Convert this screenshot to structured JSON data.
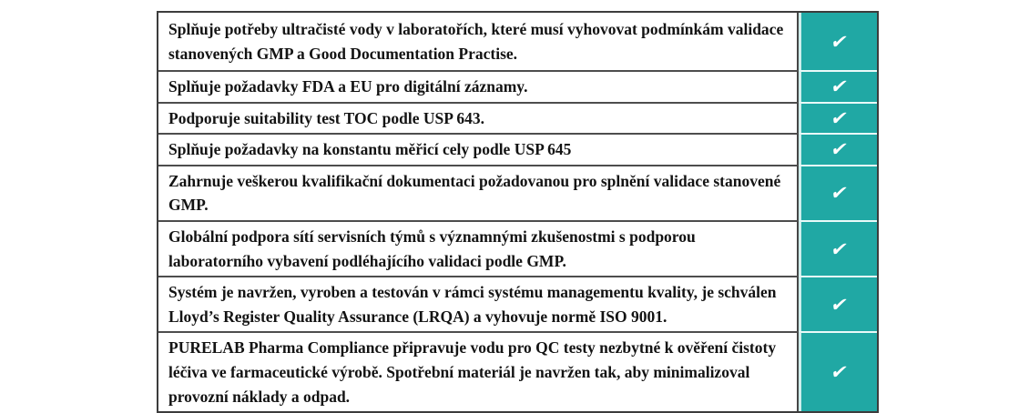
{
  "table": {
    "check_glyph": "✔",
    "accent_color": "#20a8a4",
    "border_color": "#3c3c3c",
    "rows": [
      {
        "text": "Splňuje potřeby ultračisté vody v laboratořích, které musí vyhovovat podmínkám validace stanovených GMP a Good Documentation Practise.",
        "checked": true
      },
      {
        "text": "Splňuje požadavky FDA a EU pro digitální záznamy.",
        "checked": true
      },
      {
        "text": "Podporuje suitability test TOC podle USP 643.",
        "checked": true
      },
      {
        "text": "Splňuje požadavky na konstantu měřicí cely podle USP 645",
        "checked": true
      },
      {
        "text": "Zahrnuje veškerou kvalifikační dokumentaci požadovanou pro splnění validace stanovené GMP.",
        "checked": true
      },
      {
        "text": "Globální podpora sítí servisních týmů s významnými zkušenostmi s podporou laboratorního vybavení podléhajícího validaci podle GMP.",
        "checked": true
      },
      {
        "text": "Systém je navržen, vyroben a testován v rámci systému managementu kvality, je schválen Lloyd’s Register Quality Assurance (LRQA) a vyhovuje normě ISO 9001.",
        "checked": true
      },
      {
        "text": "PURELAB Pharma Compliance připravuje vodu pro QC testy nezbytné k ověření čistoty léčiva ve farmaceutické výrobě. Spotřební materiál je navržen tak, aby minimalizoval provozní náklady a odpad.",
        "checked": true
      }
    ]
  }
}
